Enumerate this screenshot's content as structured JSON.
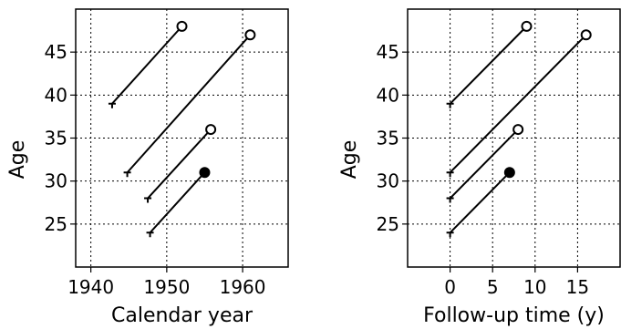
{
  "chart_data": [
    {
      "type": "line",
      "xlabel": "Calendar year",
      "ylabel": "Age",
      "xlim": [
        1938,
        1966
      ],
      "ylim": [
        20,
        50
      ],
      "xticks": [
        1940,
        1950,
        1960
      ],
      "yticks": [
        25,
        30,
        35,
        40,
        45
      ],
      "grid": true,
      "series": [
        {
          "x": [
            1942.8,
            1952.0
          ],
          "y": [
            39,
            48
          ],
          "start": "bar",
          "end": "open"
        },
        {
          "x": [
            1944.8,
            1961.0
          ],
          "y": [
            31,
            47
          ],
          "start": "bar",
          "end": "open"
        },
        {
          "x": [
            1947.5,
            1955.8
          ],
          "y": [
            28,
            36
          ],
          "start": "bar",
          "end": "open"
        },
        {
          "x": [
            1947.8,
            1955.0
          ],
          "y": [
            24,
            31
          ],
          "start": "bar",
          "end": "filled"
        }
      ]
    },
    {
      "type": "line",
      "xlabel": "Follow-up time (y)",
      "ylabel": "Age",
      "xlim": [
        -5,
        20
      ],
      "ylim": [
        20,
        50
      ],
      "xticks": [
        0,
        5,
        10,
        15
      ],
      "yticks": [
        25,
        30,
        35,
        40,
        45
      ],
      "grid": true,
      "series": [
        {
          "x": [
            0,
            9
          ],
          "y": [
            39,
            48
          ],
          "start": "bar",
          "end": "open"
        },
        {
          "x": [
            0,
            16
          ],
          "y": [
            31,
            47
          ],
          "start": "bar",
          "end": "open"
        },
        {
          "x": [
            0,
            8
          ],
          "y": [
            28,
            36
          ],
          "start": "bar",
          "end": "open"
        },
        {
          "x": [
            0,
            7
          ],
          "y": [
            24,
            31
          ],
          "start": "bar",
          "end": "filled"
        }
      ]
    }
  ]
}
